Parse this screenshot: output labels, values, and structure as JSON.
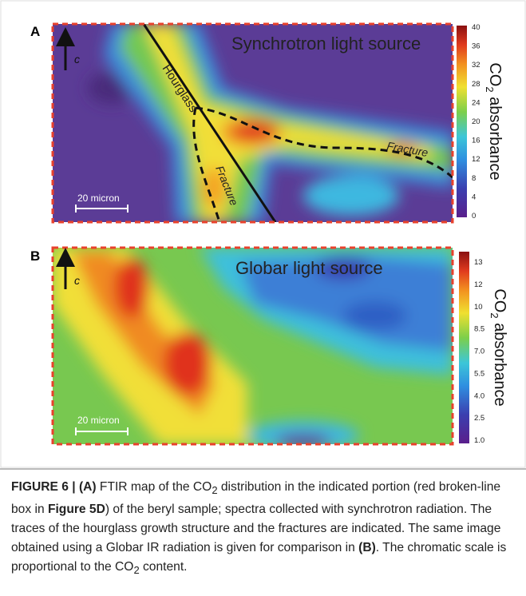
{
  "panel_a": {
    "label": "A",
    "title": "Synchrotron light source",
    "hourglass": "Hourglass",
    "fracture_right": "Fracture",
    "fracture_down": "Fracture",
    "scale_bar": "20 micron",
    "axis": "c",
    "colorbar_ticks": [
      "0",
      "4",
      "8",
      "12",
      "16",
      "20",
      "24",
      "28",
      "32",
      "36",
      "40"
    ],
    "colorbar_label": [
      "CO",
      "2",
      " absorbance"
    ]
  },
  "panel_b": {
    "label": "B",
    "title": "Globar light source",
    "scale_bar": "20 micron",
    "axis": "c",
    "colorbar_ticks": [
      "1.0",
      "2.5",
      "4.0",
      "5.5",
      "7.0",
      "8.5",
      "10",
      "12",
      "13"
    ],
    "colorbar_label": [
      "CO",
      "2",
      " absorbance"
    ]
  },
  "caption": [
    "FIGURE 6 | (A)",
    " FTIR map of the CO",
    "2",
    " distribution in the indicated portion (red broken-line box in ",
    "Figure 5D",
    ") of the beryl sample; spectra collected with synchrotron radiation. The traces of the hourglass growth structure and the fractures are indicated. The same image obtained using a Globar IR radiation is given for comparison in ",
    "(B)",
    ". The chromatic scale is proportional to the CO",
    "2",
    " content."
  ]
}
